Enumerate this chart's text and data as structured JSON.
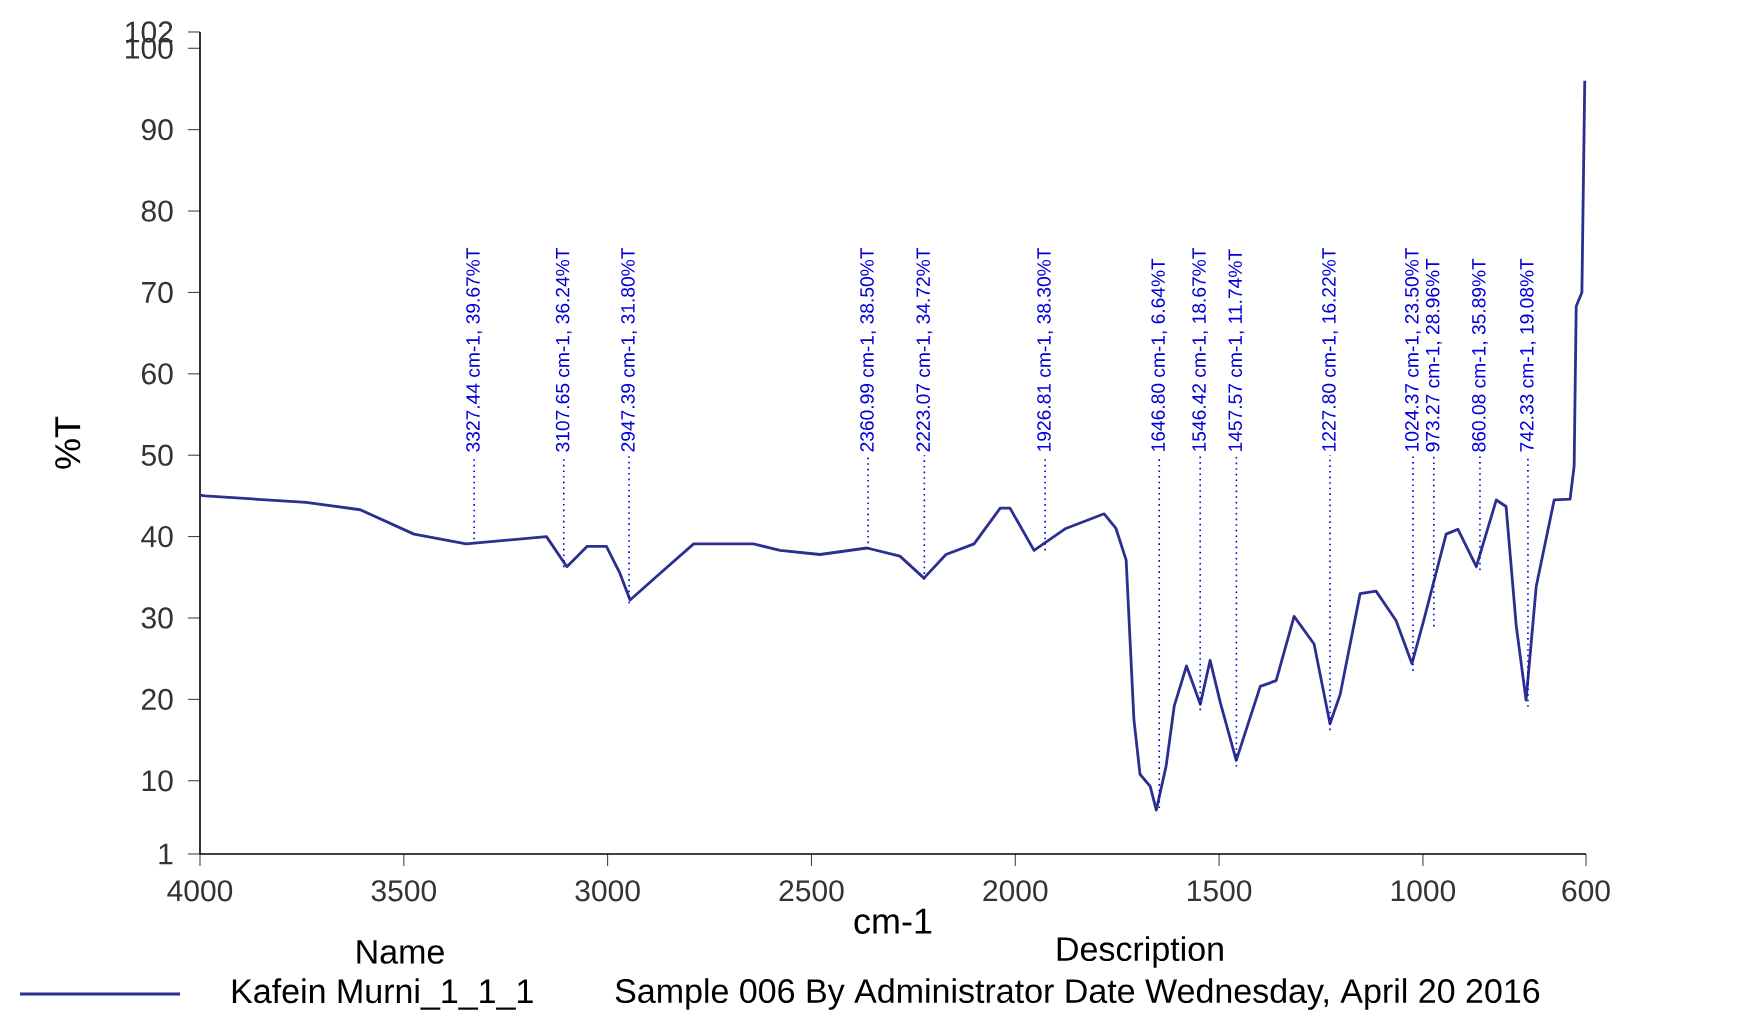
{
  "chart_data": {
    "type": "line",
    "xlabel": "cm-1",
    "ylabel": "%T",
    "legend_title": "Name",
    "legend": "bottom",
    "xlim": [
      4000,
      600
    ],
    "xticks": [
      4000,
      3500,
      3000,
      2500,
      2000,
      1500,
      1000,
      600
    ],
    "ylim": [
      1,
      102
    ],
    "yticks": [
      1,
      10,
      20,
      30,
      40,
      50,
      60,
      70,
      80,
      90,
      100,
      102
    ],
    "x": [
      4000,
      3987,
      3740,
      3607,
      3475,
      3347,
      3150,
      3100,
      3050,
      3003,
      2970,
      2945,
      2871,
      2789,
      2642,
      2577,
      2479,
      2364,
      2283,
      2224,
      2170,
      2101,
      2037,
      2013,
      1954,
      1876,
      1782,
      1753,
      1728,
      1709,
      1694,
      1669,
      1654,
      1630,
      1610,
      1580,
      1546,
      1522,
      1497,
      1458,
      1399,
      1360,
      1316,
      1267,
      1228,
      1203,
      1154,
      1115,
      1066,
      1027,
      998,
      943,
      914,
      869,
      820,
      796,
      771,
      747,
      722,
      678,
      639,
      629,
      624,
      610,
      603
    ],
    "series": [
      {
        "name": "Kafein Murni_1_1_1",
        "color": "#2b2f8f",
        "values": [
          45.1,
          45.0,
          44.2,
          43.3,
          40.3,
          39.1,
          40.0,
          36.3,
          38.8,
          38.8,
          35.5,
          32.2,
          35.5,
          39.1,
          39.1,
          38.3,
          37.8,
          38.6,
          37.6,
          34.9,
          37.8,
          39.1,
          43.5,
          43.5,
          38.3,
          41.0,
          42.8,
          41.0,
          37.1,
          17.5,
          10.8,
          9.3,
          6.4,
          11.8,
          19.2,
          24.1,
          19.4,
          24.8,
          19.6,
          12.5,
          21.6,
          22.3,
          30.2,
          26.8,
          17.0,
          20.6,
          33.0,
          33.3,
          29.7,
          24.4,
          29.7,
          40.3,
          40.9,
          36.3,
          44.5,
          43.7,
          29.0,
          19.9,
          33.9,
          44.5,
          44.6,
          48.7,
          68.3,
          70.0,
          96.0
        ]
      }
    ],
    "annotations": [
      "Description",
      "Sample 006 By Administrator Date Wednesday, April 20 2016",
      {
        "text": "3327.44 cm-1, 39.67%T",
        "x": 3327.44,
        "y": 39.67
      },
      {
        "text": "3107.65 cm-1, 36.24%T",
        "x": 3107.65,
        "y": 36.24
      },
      {
        "text": "2947.39 cm-1, 31.80%T",
        "x": 2947.39,
        "y": 31.8
      },
      {
        "text": "2360.99 cm-1, 38.50%T",
        "x": 2360.99,
        "y": 38.5
      },
      {
        "text": "2223.07 cm-1, 34.72%T",
        "x": 2223.07,
        "y": 34.72
      },
      {
        "text": "1926.81 cm-1, 38.30%T",
        "x": 1926.81,
        "y": 38.3
      },
      {
        "text": "1646.80 cm-1, 6.64%T",
        "x": 1646.8,
        "y": 6.64
      },
      {
        "text": "1546.42 cm-1, 18.67%T",
        "x": 1546.42,
        "y": 18.67
      },
      {
        "text": "1457.57 cm-1, 11.74%T",
        "x": 1457.57,
        "y": 11.74
      },
      {
        "text": "1227.80 cm-1, 16.22%T",
        "x": 1227.8,
        "y": 16.22
      },
      {
        "text": "1024.37 cm-1, 23.50%T",
        "x": 1024.37,
        "y": 23.5
      },
      {
        "text": "973.27 cm-1, 28.96%T",
        "x": 973.27,
        "y": 28.96
      },
      {
        "text": "860.08 cm-1, 35.89%T",
        "x": 860.08,
        "y": 35.89
      },
      {
        "text": "742.33 cm-1, 19.08%T",
        "x": 742.33,
        "y": 19.08
      }
    ]
  }
}
